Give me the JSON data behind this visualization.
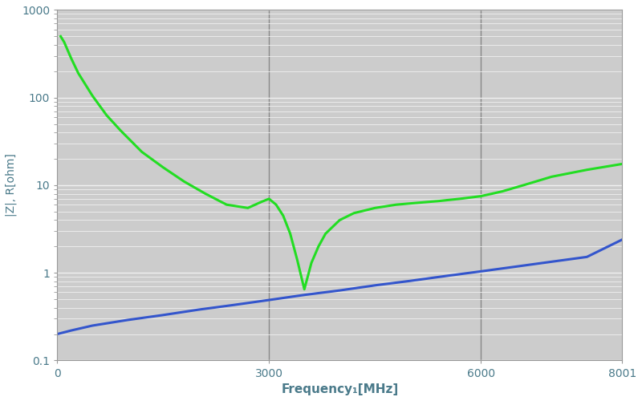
{
  "title": "",
  "xlabel": "Frequency₁[MHz]",
  "ylabel": "|Z|, R[ohm]",
  "xlim": [
    0,
    8001
  ],
  "ylim": [
    0.1,
    1000
  ],
  "xticks": [
    0,
    3000,
    6000,
    8001
  ],
  "xticklabels": [
    "0",
    "3000",
    "6000",
    "8001"
  ],
  "vlines": [
    3000,
    6000
  ],
  "fig_bg_color": "#ffffff",
  "plot_bg_color": "#cccccc",
  "grid_color": "#f0f0f0",
  "text_color": "#4a7a8a",
  "vline_color": "#888888",
  "blue_color": "#3355cc",
  "green_color": "#22dd22",
  "blue_x": [
    0,
    200,
    500,
    1000,
    1500,
    2000,
    2500,
    3000,
    3500,
    4000,
    4500,
    5000,
    5500,
    6000,
    6500,
    7000,
    7500,
    8001
  ],
  "blue_y": [
    0.2,
    0.22,
    0.25,
    0.29,
    0.33,
    0.38,
    0.43,
    0.49,
    0.56,
    0.63,
    0.72,
    0.81,
    0.92,
    1.04,
    1.18,
    1.34,
    1.52,
    2.4
  ],
  "green_x": [
    50,
    100,
    200,
    300,
    500,
    700,
    900,
    1200,
    1500,
    1800,
    2100,
    2400,
    2700,
    2900,
    3000,
    3100,
    3200,
    3300,
    3400,
    3500,
    3600,
    3700,
    3800,
    4000,
    4200,
    4500,
    4800,
    5100,
    5400,
    5700,
    6000,
    6300,
    6600,
    7000,
    7500,
    8001
  ],
  "green_y": [
    500,
    430,
    280,
    190,
    105,
    63,
    42,
    24,
    16,
    11,
    8.0,
    6.0,
    5.5,
    6.5,
    7.0,
    6.0,
    4.5,
    2.8,
    1.4,
    0.65,
    1.3,
    2.0,
    2.8,
    4.0,
    4.8,
    5.5,
    6.0,
    6.3,
    6.6,
    7.0,
    7.5,
    8.5,
    10.0,
    12.5,
    15.0,
    17.5
  ]
}
